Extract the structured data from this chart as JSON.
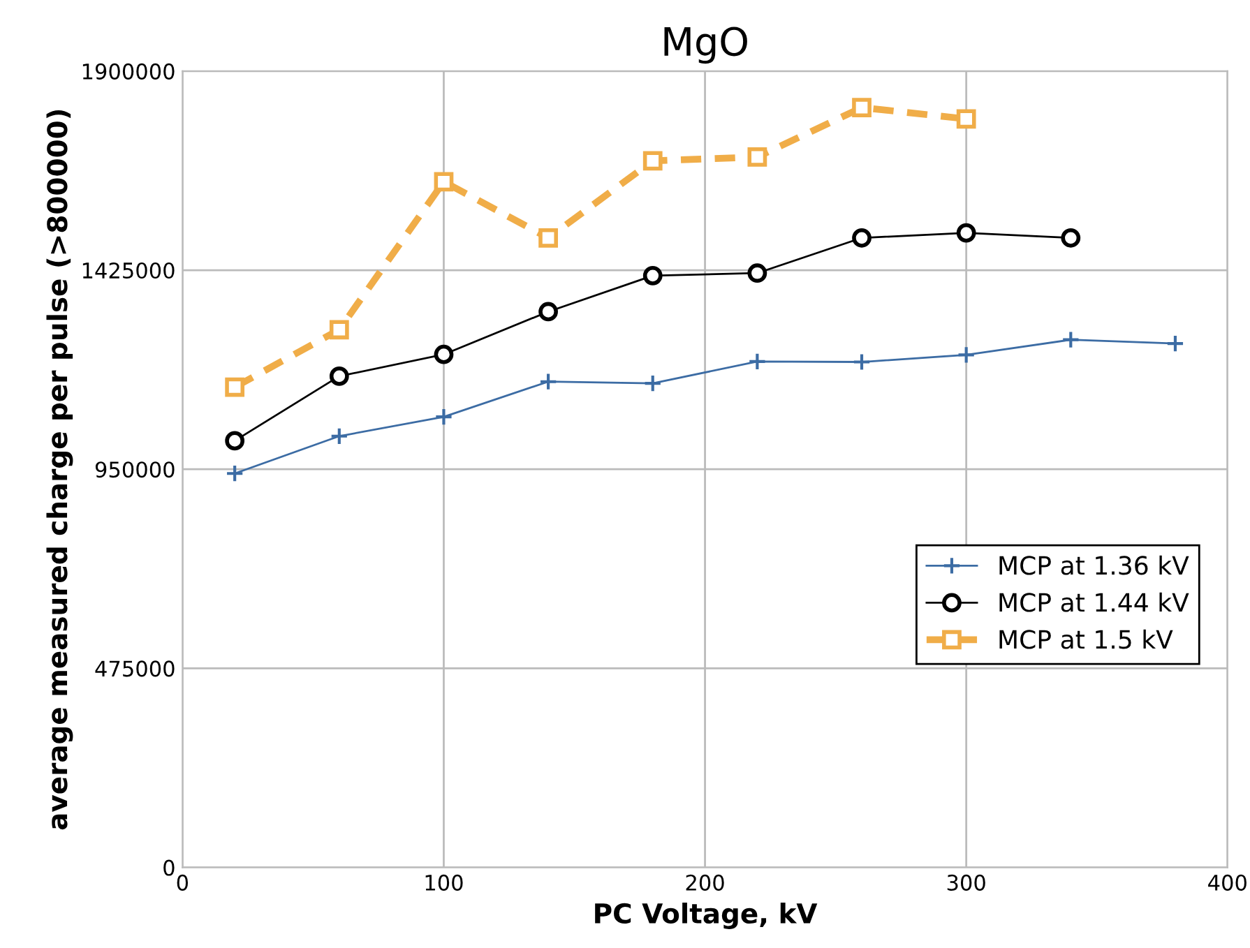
{
  "chart_data": {
    "type": "line",
    "title": "MgO",
    "xlabel": "PC Voltage, kV",
    "ylabel": "average measured charge per pulse (>800000)",
    "xlim": [
      0,
      400
    ],
    "xticks": [
      0,
      100,
      200,
      300,
      400
    ],
    "ylim": [
      0,
      1900000
    ],
    "yticks": [
      0,
      475000,
      950000,
      1425000,
      1900000
    ],
    "grid": true,
    "legend": "right",
    "series": [
      {
        "name": "MCP at 1.36 kV",
        "color": "#3c6ca4",
        "marker": "cross",
        "line_style": "solid",
        "x": [
          20,
          60,
          100,
          140,
          180,
          220,
          260,
          300,
          340,
          380
        ],
        "values": [
          940000,
          1029000,
          1075000,
          1159000,
          1155000,
          1207000,
          1206000,
          1223000,
          1259000,
          1250000
        ]
      },
      {
        "name": "MCP at 1.44 kV",
        "color": "#000000",
        "marker": "circle",
        "line_style": "solid",
        "x": [
          20,
          60,
          100,
          140,
          180,
          220,
          260,
          300,
          340
        ],
        "values": [
          1018000,
          1172000,
          1224000,
          1326000,
          1412000,
          1418000,
          1502000,
          1514000,
          1502000
        ]
      },
      {
        "name": "MCP at 1.5 kV",
        "color": "#f0ad48",
        "marker": "square",
        "line_style": "dashed",
        "x": [
          20,
          60,
          100,
          140,
          180,
          220,
          260,
          300
        ],
        "values": [
          1146000,
          1283000,
          1636000,
          1502000,
          1686000,
          1695000,
          1813000,
          1786000
        ]
      }
    ]
  }
}
